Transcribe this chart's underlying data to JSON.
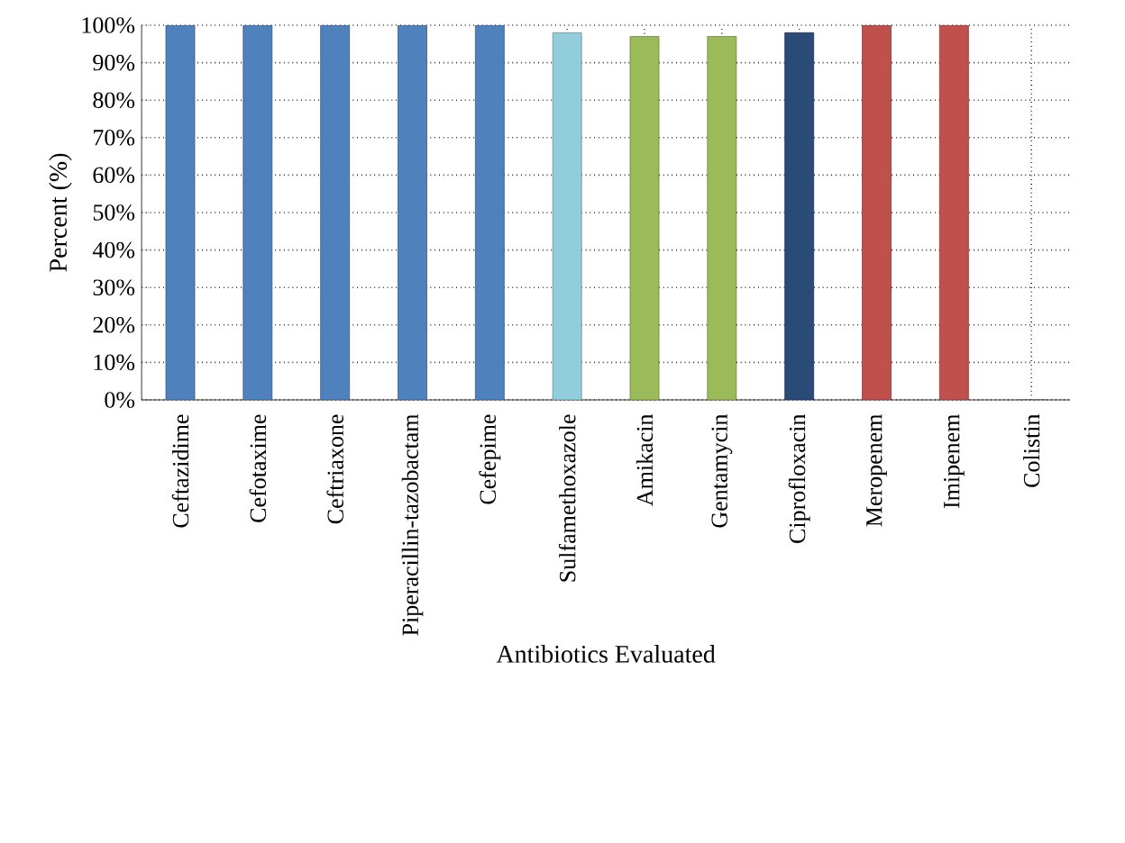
{
  "chart_data": {
    "type": "bar",
    "xlabel": "Antibiotics Evaluated",
    "ylabel": "Percent (%)",
    "categories": [
      "Ceftazidime",
      "Cefotaxime",
      "Ceftriaxone",
      "Piperacillin-tazobactam",
      "Cefepime",
      "Sulfamethoxazole",
      "Amikacin",
      "Gentamycin",
      "Ciprofloxacin",
      "Meropenem",
      "Imipenem",
      "Colistin"
    ],
    "values": [
      100,
      100,
      100,
      100,
      100,
      98,
      97,
      97,
      98,
      100,
      100,
      0
    ],
    "colors": [
      "#4f81bd",
      "#4f81bd",
      "#4f81bd",
      "#4f81bd",
      "#4f81bd",
      "#92cddc",
      "#9bbb59",
      "#9bbb59",
      "#2a4a78",
      "#c0504d",
      "#c0504d",
      "#e07b39"
    ],
    "ylim": [
      0,
      100
    ],
    "yticks": [
      {
        "value": 0,
        "label": "0%"
      },
      {
        "value": 10,
        "label": "10%"
      },
      {
        "value": 20,
        "label": "20%"
      },
      {
        "value": 30,
        "label": "30%"
      },
      {
        "value": 40,
        "label": "40%"
      },
      {
        "value": 50,
        "label": "50%"
      },
      {
        "value": 60,
        "label": "60%"
      },
      {
        "value": 70,
        "label": "70%"
      },
      {
        "value": 80,
        "label": "80%"
      },
      {
        "value": 90,
        "label": "90%"
      },
      {
        "value": 100,
        "label": "100%"
      }
    ],
    "grid": true
  }
}
